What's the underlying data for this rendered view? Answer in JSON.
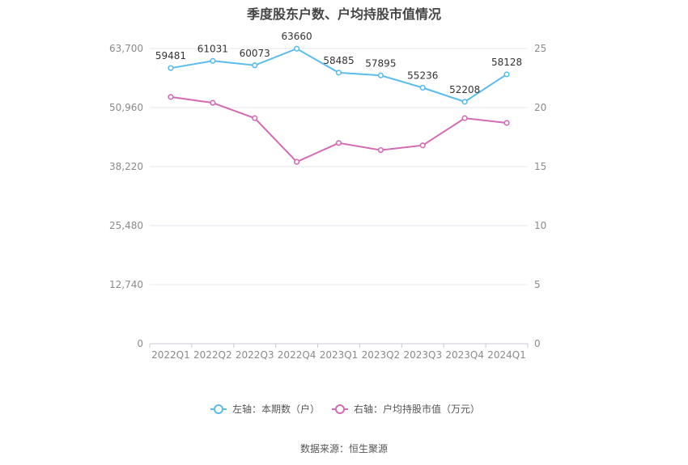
{
  "title": "季度股东户数、户均持股市值情况",
  "source": "数据来源：恒生聚源",
  "colors": {
    "left_series": "#5bbcec",
    "right_series": "#d46bb4",
    "grid": "#e6e6ef",
    "axis_text": "#8a8a8a"
  },
  "chart_data": {
    "type": "line",
    "categories": [
      "2022Q1",
      "2022Q2",
      "2022Q3",
      "2022Q4",
      "2023Q1",
      "2023Q2",
      "2023Q3",
      "2023Q4",
      "2024Q1"
    ],
    "left_axis": {
      "ticks": [
        "0",
        "12,740",
        "25,480",
        "38,220",
        "50,960",
        "63,700"
      ],
      "min": 0,
      "max": 63700
    },
    "right_axis": {
      "ticks": [
        "0",
        "5",
        "10",
        "15",
        "20",
        "25"
      ],
      "min": 0,
      "max": 25
    },
    "series": [
      {
        "name": "左轴：本期数（户）",
        "axis": "left",
        "values": [
          59481,
          61031,
          60073,
          63660,
          58485,
          57895,
          55236,
          52208,
          58128
        ],
        "labels": [
          "59481",
          "61031",
          "60073",
          "63660",
          "58485",
          "57895",
          "55236",
          "52208",
          "58128"
        ]
      },
      {
        "name": "右轴：户均持股市值（万元）",
        "axis": "right",
        "values": [
          20.9,
          20.4,
          19.1,
          15.4,
          17.0,
          16.4,
          16.8,
          19.1,
          18.7
        ]
      }
    ],
    "grid": true,
    "legend_position": "bottom"
  }
}
